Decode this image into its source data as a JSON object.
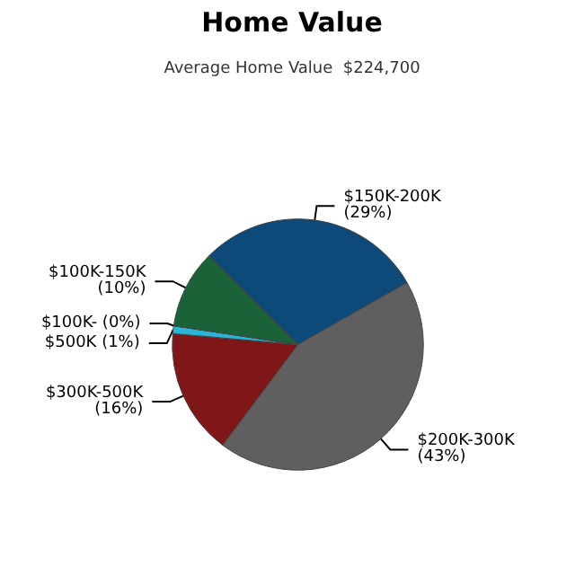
{
  "chart_data": {
    "type": "pie",
    "title": "Home Value",
    "subtitle": "Average Home Value  $224,700",
    "categories": [
      "$150K-200K",
      "$200K-300K",
      "$300K-500K",
      "$500K",
      "$100K-",
      "$100K-150K"
    ],
    "values": [
      29,
      43,
      16,
      1,
      0,
      10
    ],
    "value_labels": [
      "(29%)",
      "(43%)",
      "(16%)",
      "(1%)",
      "(0%)",
      "(10%)"
    ],
    "colors": [
      "#0d4a7a",
      "#5f5f5f",
      "#7f1719",
      "#2ab5d6",
      "#1a7fa8",
      "#1a6339"
    ]
  }
}
